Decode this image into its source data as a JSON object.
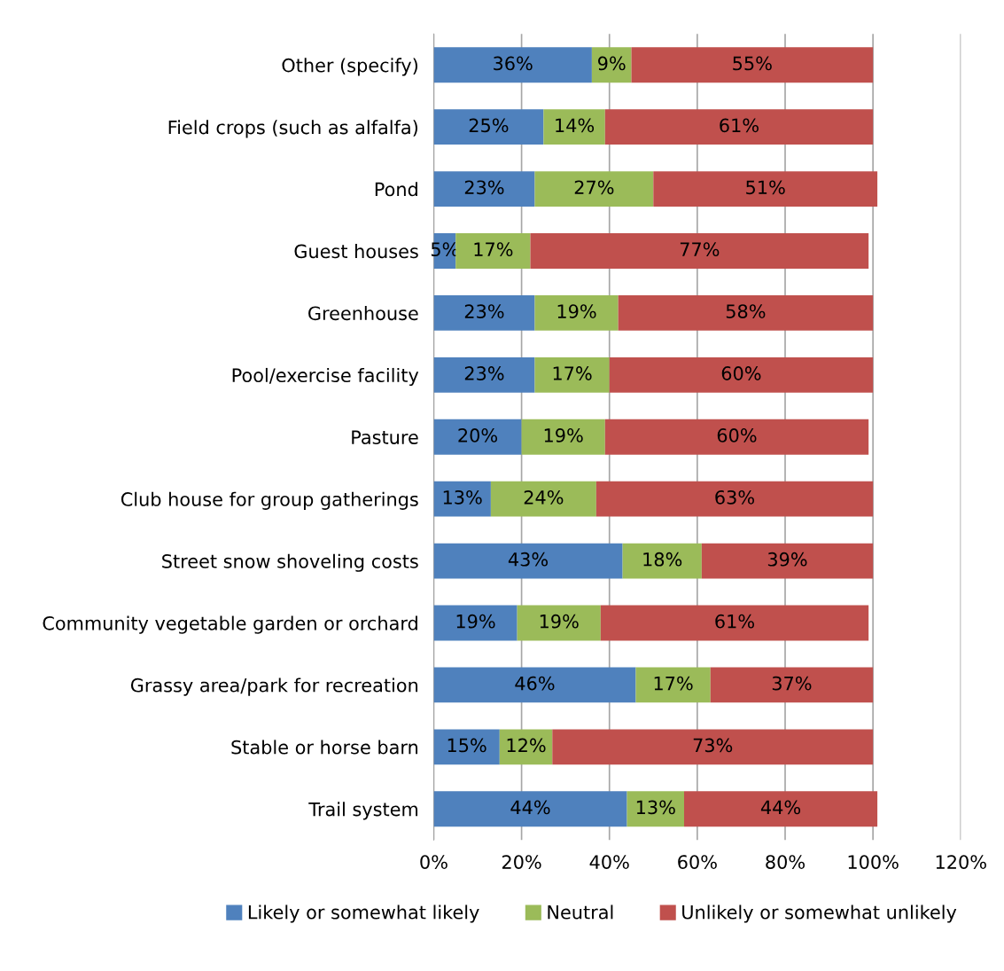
{
  "chart_data": {
    "type": "bar",
    "orientation": "horizontal",
    "stacked": true,
    "categories": [
      "Other (specify)",
      "Field crops (such as alfalfa)",
      "Pond",
      "Guest houses",
      "Greenhouse",
      "Pool/exercise facility",
      "Pasture",
      "Club house for group gatherings",
      "Street snow shoveling costs",
      "Community vegetable garden or orchard",
      "Grassy area/park for recreation",
      "Stable or horse barn",
      "Trail system"
    ],
    "series": [
      {
        "name": "Likely or somewhat likely",
        "color": "#4f81bd",
        "values": [
          36,
          25,
          23,
          5,
          23,
          23,
          20,
          13,
          43,
          19,
          46,
          15,
          44
        ],
        "value_labels": [
          "36%",
          "25%",
          "23%",
          "5%",
          "23%",
          "23%",
          "20%",
          "13%",
          "43%",
          "19%",
          "46%",
          "15%",
          "44%"
        ]
      },
      {
        "name": "Neutral",
        "color": "#9bbb59",
        "values": [
          9,
          14,
          27,
          17,
          19,
          17,
          19,
          24,
          18,
          19,
          17,
          12,
          13
        ],
        "value_labels": [
          "9%",
          "14%",
          "27%",
          "17%",
          "19%",
          "17%",
          "19%",
          "24%",
          "18%",
          "19%",
          "17%",
          "12%",
          "13%"
        ]
      },
      {
        "name": "Unlikely or somewhat unlikely",
        "color": "#c0504d",
        "values": [
          55,
          61,
          51,
          77,
          58,
          60,
          60,
          63,
          39,
          61,
          37,
          73,
          44
        ],
        "value_labels": [
          "55%",
          "61%",
          "51%",
          "77%",
          "58%",
          "60%",
          "60%",
          "63%",
          "39%",
          "61%",
          "37%",
          "73%",
          "44%"
        ]
      }
    ],
    "xlim": [
      0,
      120
    ],
    "xticks": [
      {
        "value": 0,
        "label": "0%"
      },
      {
        "value": 20,
        "label": "20%"
      },
      {
        "value": 40,
        "label": "40%"
      },
      {
        "value": 60,
        "label": "60%"
      },
      {
        "value": 80,
        "label": "80%"
      },
      {
        "value": 100,
        "label": "100%"
      },
      {
        "value": 120,
        "label": "120%"
      }
    ],
    "grid": "x",
    "legend": "bottom"
  }
}
